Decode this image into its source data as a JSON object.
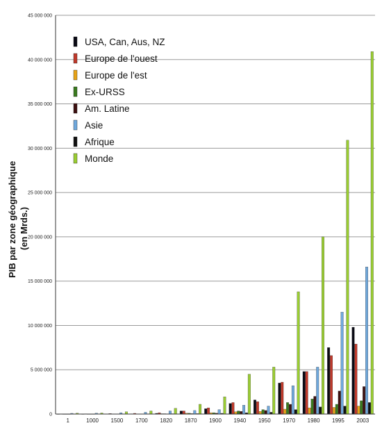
{
  "chart_data": {
    "type": "bar",
    "title": "",
    "xlabel": "",
    "ylabel_lines": [
      "PIB par zone géographique",
      "(en Mrds.)"
    ],
    "ylim": [
      0,
      45000000
    ],
    "ytick_values": [
      0,
      5000000,
      10000000,
      15000000,
      20000000,
      25000000,
      30000000,
      35000000,
      40000000,
      45000000
    ],
    "ytick_labels": [
      "0",
      "5 000 000",
      "10 000 000",
      "15 000 000",
      "20 000 000",
      "25 000 000",
      "30 000 000",
      "35 000 000",
      "40 000 000",
      "45 000 000"
    ],
    "grid": true,
    "legend_position": "top-left",
    "categories": [
      "1",
      "1000",
      "1500",
      "1700",
      "1820",
      "1870",
      "1900",
      "1940",
      "1950",
      "1970",
      "1980",
      "1995",
      "2003"
    ],
    "category_labels": [
      "1",
      "1000",
      "1500",
      "1700",
      "1820",
      "1870",
      "1900",
      "1940",
      "1950",
      "1970",
      "1980",
      "1995",
      "2003"
    ],
    "series": [
      {
        "name": "USA, Can, Aus, NZ",
        "color": "#0a0a14",
        "values": [
          1000,
          2000,
          20000,
          30000,
          80000,
          350000,
          600000,
          1200000,
          1600000,
          3500000,
          4800000,
          7500000,
          9800000
        ]
      },
      {
        "name": "Europe de l'ouest",
        "color": "#c0392b",
        "values": [
          10000,
          30000,
          60000,
          80000,
          150000,
          350000,
          700000,
          1300000,
          1400000,
          3600000,
          4800000,
          6600000,
          7900000
        ]
      },
      {
        "name": "Europe de l'est",
        "color": "#e8a317",
        "values": [
          2000,
          5000,
          10000,
          20000,
          40000,
          90000,
          150000,
          250000,
          300000,
          550000,
          700000,
          750000,
          900000
        ]
      },
      {
        "name": "Ex-URSS",
        "color": "#3a7a1e",
        "values": [
          2000,
          5000,
          10000,
          20000,
          40000,
          90000,
          150000,
          350000,
          500000,
          1300000,
          1700000,
          1100000,
          1500000
        ]
      },
      {
        "name": "Am. Latine",
        "color": "#3d1010",
        "values": [
          2000,
          5000,
          10000,
          20000,
          30000,
          50000,
          100000,
          300000,
          400000,
          1100000,
          2000000,
          2600000,
          3100000
        ]
      },
      {
        "name": "Asie",
        "color": "#6fa8dc",
        "values": [
          80000,
          100000,
          150000,
          200000,
          350000,
          400000,
          500000,
          1000000,
          900000,
          3200000,
          5300000,
          11500000,
          16600000
        ]
      },
      {
        "name": "Afrique",
        "color": "#111111",
        "values": [
          10000,
          20000,
          20000,
          30000,
          40000,
          50000,
          80000,
          150000,
          200000,
          500000,
          800000,
          900000,
          1300000
        ]
      },
      {
        "name": "Monde",
        "color": "#9acd32",
        "values": [
          100000,
          120000,
          250000,
          350000,
          650000,
          1100000,
          1950000,
          4500000,
          5300000,
          13800000,
          20000000,
          30900000,
          40900000
        ]
      }
    ]
  }
}
